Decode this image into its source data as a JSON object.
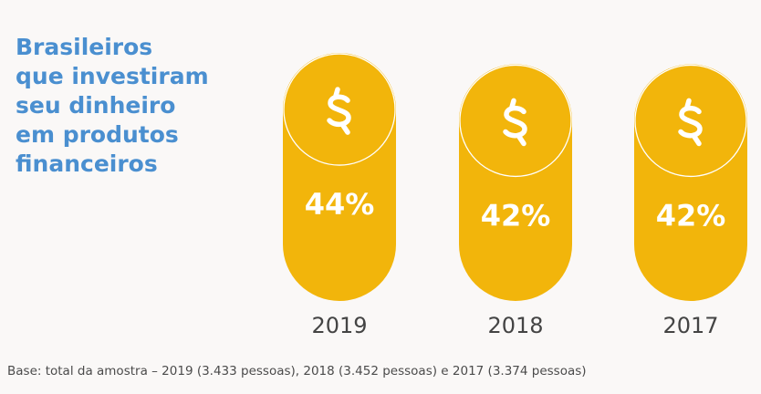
{
  "title_lines": [
    "Brasileiros",
    "que investiram",
    "seu dinheiro",
    "em produtos",
    "financeiros"
  ],
  "chart_data": {
    "type": "bar",
    "title": "Brasileiros que investiram seu dinheiro em produtos financeiros",
    "categories": [
      "2019",
      "2018",
      "2017"
    ],
    "values": [
      44,
      42,
      42
    ],
    "value_labels": [
      "44%",
      "42%",
      "42%"
    ],
    "unit": "%",
    "icon": "dollar-sign-icon",
    "colors": {
      "bar": "#f2b50b",
      "icon": "#ffffff",
      "label": "#ffffff",
      "year": "#444444"
    }
  },
  "footnote": "Base: total da amostra – 2019 (3.433 pessoas), 2018 (3.452 pessoas) e 2017 (3.374 pessoas)"
}
